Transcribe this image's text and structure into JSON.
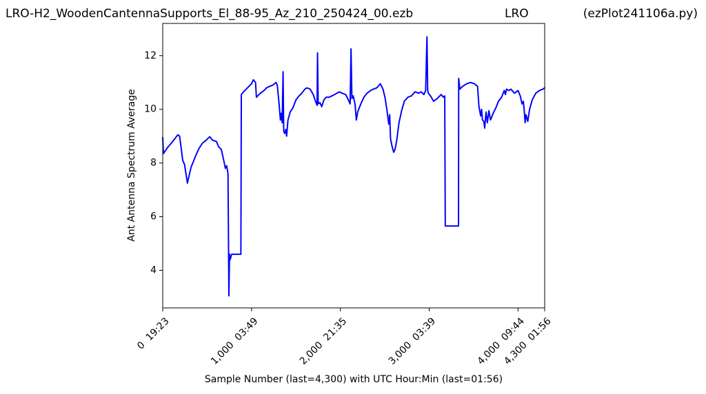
{
  "header": {
    "file_title": "LRO-H2_WoodenCantennaSupports_El_88-95_Az_210_250424_00.ezb",
    "site": "LRO",
    "script_name": "(ezPlot241106a.py)"
  },
  "chart_data": {
    "type": "line",
    "title": "",
    "xlabel": "Sample Number (last=4,300) with UTC Hour:Min (last=01:56)",
    "ylabel": "Ant Antenna Spectrum Average",
    "xlim": [
      0,
      4300
    ],
    "ylim": [
      2.6,
      13.2
    ],
    "x_ticks": [
      {
        "value": 0,
        "label": "0  19:23"
      },
      {
        "value": 1000,
        "label": "1,000  03:49"
      },
      {
        "value": 2000,
        "label": "2,000  21:35"
      },
      {
        "value": 3000,
        "label": "3,000  03:39"
      },
      {
        "value": 4000,
        "label": "4,000  09:44"
      },
      {
        "value": 4300,
        "label": "4,300  01:56"
      }
    ],
    "y_ticks": [
      {
        "value": 4,
        "label": "4"
      },
      {
        "value": 6,
        "label": "6"
      },
      {
        "value": 8,
        "label": "8"
      },
      {
        "value": 10,
        "label": "10"
      },
      {
        "value": 12,
        "label": "12"
      }
    ],
    "grid": false,
    "legend": "none",
    "series": [
      {
        "color": "#0000ff",
        "points": [
          [
            0,
            8.95
          ],
          [
            8,
            8.35
          ],
          [
            60,
            8.6
          ],
          [
            100,
            8.75
          ],
          [
            140,
            8.92
          ],
          [
            170,
            9.05
          ],
          [
            190,
            9.0
          ],
          [
            210,
            8.5
          ],
          [
            225,
            8.1
          ],
          [
            245,
            7.95
          ],
          [
            262,
            7.6
          ],
          [
            278,
            7.25
          ],
          [
            295,
            7.5
          ],
          [
            320,
            7.85
          ],
          [
            345,
            8.05
          ],
          [
            375,
            8.3
          ],
          [
            410,
            8.55
          ],
          [
            450,
            8.75
          ],
          [
            480,
            8.82
          ],
          [
            530,
            8.98
          ],
          [
            560,
            8.85
          ],
          [
            605,
            8.8
          ],
          [
            630,
            8.6
          ],
          [
            660,
            8.5
          ],
          [
            690,
            8.05
          ],
          [
            705,
            7.8
          ],
          [
            720,
            7.9
          ],
          [
            735,
            7.6
          ],
          [
            745,
            3.05
          ],
          [
            752,
            4.6
          ],
          [
            760,
            4.4
          ],
          [
            775,
            4.6
          ],
          [
            880,
            4.6
          ],
          [
            885,
            10.55
          ],
          [
            910,
            10.65
          ],
          [
            940,
            10.75
          ],
          [
            970,
            10.85
          ],
          [
            1000,
            10.95
          ],
          [
            1020,
            11.1
          ],
          [
            1045,
            11.0
          ],
          [
            1055,
            10.45
          ],
          [
            1070,
            10.5
          ],
          [
            1100,
            10.6
          ],
          [
            1140,
            10.7
          ],
          [
            1170,
            10.8
          ],
          [
            1200,
            10.85
          ],
          [
            1240,
            10.9
          ],
          [
            1275,
            11.0
          ],
          [
            1290,
            10.9
          ],
          [
            1310,
            10.2
          ],
          [
            1325,
            9.6
          ],
          [
            1335,
            9.85
          ],
          [
            1345,
            9.5
          ],
          [
            1355,
            11.4
          ],
          [
            1362,
            9.2
          ],
          [
            1372,
            9.1
          ],
          [
            1385,
            9.25
          ],
          [
            1395,
            9.0
          ],
          [
            1410,
            9.6
          ],
          [
            1435,
            9.9
          ],
          [
            1465,
            10.05
          ],
          [
            1500,
            10.35
          ],
          [
            1535,
            10.5
          ],
          [
            1565,
            10.6
          ],
          [
            1600,
            10.75
          ],
          [
            1625,
            10.8
          ],
          [
            1660,
            10.75
          ],
          [
            1695,
            10.55
          ],
          [
            1720,
            10.3
          ],
          [
            1738,
            10.15
          ],
          [
            1743,
            12.1
          ],
          [
            1750,
            10.2
          ],
          [
            1770,
            10.25
          ],
          [
            1790,
            10.1
          ],
          [
            1815,
            10.35
          ],
          [
            1840,
            10.45
          ],
          [
            1875,
            10.45
          ],
          [
            1905,
            10.5
          ],
          [
            1935,
            10.55
          ],
          [
            1960,
            10.6
          ],
          [
            1990,
            10.65
          ],
          [
            2020,
            10.6
          ],
          [
            2060,
            10.55
          ],
          [
            2090,
            10.35
          ],
          [
            2110,
            10.2
          ],
          [
            2120,
            12.25
          ],
          [
            2130,
            10.4
          ],
          [
            2145,
            10.5
          ],
          [
            2165,
            10.2
          ],
          [
            2180,
            9.6
          ],
          [
            2195,
            9.9
          ],
          [
            2230,
            10.2
          ],
          [
            2265,
            10.45
          ],
          [
            2300,
            10.6
          ],
          [
            2340,
            10.7
          ],
          [
            2370,
            10.75
          ],
          [
            2410,
            10.8
          ],
          [
            2450,
            10.95
          ],
          [
            2480,
            10.75
          ],
          [
            2505,
            10.4
          ],
          [
            2525,
            9.95
          ],
          [
            2545,
            9.45
          ],
          [
            2555,
            9.8
          ],
          [
            2565,
            8.9
          ],
          [
            2580,
            8.65
          ],
          [
            2600,
            8.4
          ],
          [
            2615,
            8.5
          ],
          [
            2635,
            8.85
          ],
          [
            2660,
            9.5
          ],
          [
            2690,
            9.95
          ],
          [
            2720,
            10.3
          ],
          [
            2760,
            10.45
          ],
          [
            2800,
            10.5
          ],
          [
            2840,
            10.65
          ],
          [
            2880,
            10.6
          ],
          [
            2910,
            10.65
          ],
          [
            2940,
            10.55
          ],
          [
            2960,
            10.7
          ],
          [
            2975,
            12.7
          ],
          [
            2983,
            10.7
          ],
          [
            2990,
            10.6
          ],
          [
            3015,
            10.5
          ],
          [
            3050,
            10.3
          ],
          [
            3090,
            10.4
          ],
          [
            3135,
            10.55
          ],
          [
            3160,
            10.45
          ],
          [
            3175,
            10.5
          ],
          [
            3181,
            5.65
          ],
          [
            3330,
            5.65
          ],
          [
            3332,
            11.15
          ],
          [
            3345,
            10.75
          ],
          [
            3375,
            10.85
          ],
          [
            3420,
            10.95
          ],
          [
            3465,
            11.0
          ],
          [
            3510,
            10.95
          ],
          [
            3545,
            10.85
          ],
          [
            3560,
            10.1
          ],
          [
            3580,
            9.75
          ],
          [
            3590,
            10.0
          ],
          [
            3600,
            9.6
          ],
          [
            3615,
            9.55
          ],
          [
            3625,
            9.3
          ],
          [
            3640,
            9.9
          ],
          [
            3655,
            9.5
          ],
          [
            3672,
            9.95
          ],
          [
            3690,
            9.6
          ],
          [
            3720,
            9.85
          ],
          [
            3750,
            10.05
          ],
          [
            3780,
            10.3
          ],
          [
            3815,
            10.45
          ],
          [
            3845,
            10.7
          ],
          [
            3858,
            10.55
          ],
          [
            3870,
            10.75
          ],
          [
            3895,
            10.7
          ],
          [
            3920,
            10.75
          ],
          [
            3960,
            10.6
          ],
          [
            4000,
            10.7
          ],
          [
            4025,
            10.5
          ],
          [
            4045,
            10.2
          ],
          [
            4060,
            10.3
          ],
          [
            4070,
            9.95
          ],
          [
            4080,
            9.5
          ],
          [
            4090,
            9.8
          ],
          [
            4110,
            9.55
          ],
          [
            4130,
            10.0
          ],
          [
            4160,
            10.35
          ],
          [
            4200,
            10.6
          ],
          [
            4240,
            10.7
          ],
          [
            4280,
            10.75
          ],
          [
            4300,
            10.8
          ]
        ]
      }
    ]
  }
}
